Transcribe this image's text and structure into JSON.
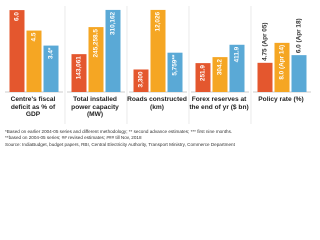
{
  "chart_data": [
    {
      "type": "bar",
      "title": "Centre's fiscal deficit as % of GDP",
      "values": [
        6.0,
        4.5,
        3.4
      ],
      "value_labels": [
        "6.0",
        "4.5",
        "3.4*"
      ],
      "colors": [
        "#e4572e",
        "#f5a623",
        "#5aa9d6"
      ],
      "ylim": [
        0,
        6.3
      ]
    },
    {
      "type": "bar",
      "title": "Total installed power capacity (MW)",
      "values": [
        143061,
        245258.5,
        310162
      ],
      "value_labels": [
        "143,061",
        "245,258.5",
        "310,162"
      ],
      "colors": [
        "#e4572e",
        "#f5a623",
        "#5aa9d6"
      ],
      "ylim": [
        0,
        325000
      ]
    },
    {
      "type": "bar",
      "title": "Roads constructed (km)",
      "values": [
        3300,
        12026,
        5759
      ],
      "value_labels": [
        "3,300",
        "12,026",
        "5,759**"
      ],
      "colors": [
        "#e4572e",
        "#f5a623",
        "#5aa9d6"
      ],
      "ylim": [
        0,
        12600
      ]
    },
    {
      "type": "bar",
      "title": "Forex reserves at the end of yr ($ bn)",
      "values": [
        251.9,
        304.2,
        411.9
      ],
      "value_labels": [
        "251.9",
        "304.2",
        "411.9"
      ],
      "colors": [
        "#e4572e",
        "#f5a623",
        "#5aa9d6"
      ],
      "ylim": [
        0,
        750
      ]
    },
    {
      "type": "bar",
      "title": "Policy rate (%)",
      "values": [
        4.75,
        8.0,
        6.0
      ],
      "value_labels": [
        "4.75 (Apr 05)",
        "8.0 (Apr 14)",
        "6.0 (Apr 18)"
      ],
      "colors": [
        "#e4572e",
        "#f5a623",
        "#5aa9d6"
      ],
      "ylim": [
        0,
        14
      ]
    }
  ],
  "notes": [
    "*Based on earlier 2004-05 series and different methodology; ** second advance estimates; *** first nine months.",
    "**based on 2004-05 series; ## revised estimates; ### till Nov, 2018",
    "Source: IndiaBudget, budget papers, RBI, Central Electricity Authority, Transport Ministry, Commerce Department"
  ]
}
